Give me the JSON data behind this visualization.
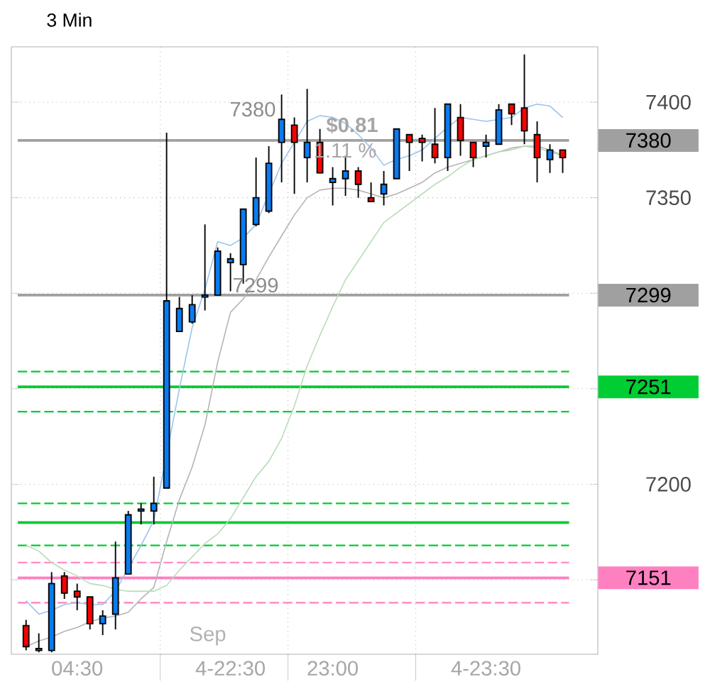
{
  "chart_data": {
    "type": "candlestick",
    "title": "3 Min",
    "categories": [
      null,
      null,
      null,
      null,
      "04:30",
      null,
      null,
      null,
      null,
      null,
      null,
      null,
      null,
      null,
      null,
      null,
      "4-22:30",
      null,
      null,
      null,
      null,
      null,
      null,
      null,
      "23:00",
      null,
      null,
      null,
      null,
      null,
      null,
      null,
      null,
      null,
      null,
      null,
      "4-23:30",
      null,
      null,
      null,
      null,
      null,
      null
    ],
    "ohlc": [
      [
        7126,
        7129,
        7113,
        7115
      ],
      [
        7113,
        7122,
        7112,
        7114
      ],
      [
        7113,
        7154,
        7112,
        7148
      ],
      [
        7152,
        7154,
        7140,
        7143
      ],
      [
        7144,
        7148,
        7134,
        7141
      ],
      [
        7141,
        7141,
        7124,
        7127
      ],
      [
        7127,
        7134,
        7121,
        7131
      ],
      [
        7132,
        7170,
        7124,
        7151
      ],
      [
        7153,
        7186,
        7153,
        7184
      ],
      [
        7186,
        7190,
        7179,
        7187
      ],
      [
        7186,
        7204,
        7179,
        7190
      ],
      [
        7198,
        7384,
        7198,
        7296
      ],
      [
        7280,
        7298,
        7280,
        7292
      ],
      [
        7285,
        7299,
        7284,
        7294
      ],
      [
        7298,
        7336,
        7291,
        7299
      ],
      [
        7299,
        7324,
        7299,
        7322
      ],
      [
        7316,
        7321,
        7301,
        7318
      ],
      [
        7315,
        7344,
        7305,
        7344
      ],
      [
        7336,
        7371,
        7335,
        7350
      ],
      [
        7343,
        7377,
        7342,
        7368
      ],
      [
        7379,
        7404,
        7358,
        7391
      ],
      [
        7388,
        7392,
        7352,
        7379
      ],
      [
        7371,
        7407,
        7358,
        7379
      ],
      [
        7379,
        7386,
        7363,
        7363
      ],
      [
        7358,
        7366,
        7346,
        7360
      ],
      [
        7360,
        7372,
        7351,
        7364
      ],
      [
        7364,
        7366,
        7350,
        7357
      ],
      [
        7350,
        7358,
        7348,
        7348
      ],
      [
        7352,
        7364,
        7346,
        7357
      ],
      [
        7360,
        7386,
        7360,
        7386
      ],
      [
        7383,
        7383,
        7364,
        7379
      ],
      [
        7381,
        7383,
        7369,
        7379
      ],
      [
        7378,
        7397,
        7368,
        7371
      ],
      [
        7371,
        7399,
        7364,
        7399
      ],
      [
        7392,
        7399,
        7372,
        7380
      ],
      [
        7379,
        7379,
        7366,
        7371
      ],
      [
        7377,
        7383,
        7371,
        7379
      ],
      [
        7378,
        7399,
        7378,
        7396
      ],
      [
        7399,
        7399,
        7388,
        7394
      ],
      [
        7397,
        7425,
        7378,
        7385
      ],
      [
        7383,
        7390,
        7358,
        7371
      ],
      [
        7370,
        7378,
        7363,
        7375
      ],
      [
        7375,
        7375,
        7363,
        7371
      ]
    ],
    "colors": [
      "#ff0000",
      "#0a7cf0",
      "#0a7cf0",
      "#ff0000",
      "#ff0000",
      "#ff0000",
      "#0a7cf0",
      "#0a7cf0",
      "#0a7cf0",
      "#0a7cf0",
      "#0a7cf0",
      "#0a7cf0",
      "#0a7cf0",
      "#0a7cf0",
      "#0a7cf0",
      "#0a7cf0",
      "#0a7cf0",
      "#0a7cf0",
      "#0a7cf0",
      "#0a7cf0",
      "#0a7cf0",
      "#ff0000",
      "#0a7cf0",
      "#ff0000",
      "#0a7cf0",
      "#0a7cf0",
      "#ff0000",
      "#ff0000",
      "#0a7cf0",
      "#0a7cf0",
      "#ff0000",
      "#ff0000",
      "#ff0000",
      "#0a7cf0",
      "#ff0000",
      "#ff0000",
      "#0a7cf0",
      "#0a7cf0",
      "#ff0000",
      "#ff0000",
      "#ff0000",
      "#0a7cf0",
      "#ff0000"
    ],
    "series": [
      {
        "type": "line",
        "color": "#9cc3ee",
        "values": [
          7139,
          7132,
          7134,
          7137,
          7138,
          7137,
          7137,
          7144,
          null,
          7168,
          7181,
          null,
          7250,
          7282,
          7302,
          7327,
          7325,
          7329,
          7336,
          null,
          7368,
          7379,
          7390,
          7393,
          7392,
          7389,
          7383,
          7376,
          7367,
          7370,
          7372,
          7375,
          7381,
          7387,
          7392,
          7391,
          7390,
          7391,
          7392,
          7397,
          7399,
          7398,
          7392
        ]
      },
      {
        "type": "line",
        "color": "#b4b4b4",
        "values": [
          7115,
          7118,
          7120,
          7123,
          7125,
          7128,
          7130,
          7131,
          7133,
          7140,
          7146,
          7170,
          7192,
          7209,
          7231,
          7264,
          7290,
          7297,
          7307,
          7319,
          7330,
          7341,
          7350,
          7354,
          7355,
          7355,
          7354,
          7352,
          7350,
          7352,
          7355,
          7358,
          7363,
          7366,
          7368,
          7370,
          7372,
          7374,
          7376,
          7377,
          7377,
          7375,
          7372
        ]
      },
      {
        "type": "line",
        "color": "#b9dcb9",
        "values": [
          7168,
          7165,
          7159,
          7155,
          7152,
          7148,
          7147,
          7145,
          7144,
          7144,
          7144,
          7147,
          7155,
          7162,
          7169,
          7174,
          7182,
          7193,
          7204,
          7212,
          7224,
          7241,
          7262,
          7278,
          7293,
          7307,
          7317,
          7327,
          7337,
          7342,
          7347,
          7352,
          7357,
          7361,
          7366,
          7370,
          7372,
          7374,
          7375,
          7377,
          7376,
          7374,
          7372
        ]
      }
    ],
    "ylim": [
      7111,
      7429
    ],
    "yticks": [
      {
        "value": 7150,
        "label": null
      },
      7200,
      {
        "value": 7250,
        "label": null
      },
      {
        "value": 7300,
        "label": null
      },
      7350,
      7400
    ],
    "grid": true,
    "ref_lines": [
      {
        "axis": "y",
        "value": 7380,
        "label": "7380",
        "color": "#a0a0a0",
        "line_style": "solid"
      },
      {
        "axis": "y",
        "value": 7299,
        "label": "7299",
        "color": "#a0a0a0",
        "line_style": "solid"
      },
      {
        "axis": "y",
        "value": 7251,
        "label": "7251",
        "color": "#00cc33",
        "line_style": "solid"
      },
      {
        "axis": "y",
        "value": 7259,
        "color": "#00cc33",
        "line_style": "dashed"
      },
      {
        "axis": "y",
        "value": 7238,
        "color": "#00cc33",
        "line_style": "dashed"
      },
      {
        "axis": "y",
        "value": 7151,
        "label": "7151",
        "color": "#ff80c0",
        "line_style": "solid"
      },
      {
        "axis": "y",
        "value": 7159,
        "color": "#ff80c0",
        "line_style": "dashed"
      },
      {
        "axis": "y",
        "value": 7138,
        "color": "#ff80c0",
        "line_style": "dashed"
      },
      {
        "axis": "y",
        "value": 7180,
        "color": "#00cc33",
        "line_style": "solid"
      },
      {
        "axis": "y",
        "value": 7190,
        "color": "#00cc33",
        "line_style": "dashed"
      },
      {
        "axis": "y",
        "value": 7168,
        "color": "#00cc33",
        "line_style": "dashed"
      }
    ],
    "annotations": [
      "Sep",
      {
        "text": "$0.81",
        "y": 7388
      },
      "1.11 %",
      "7380",
      "7299"
    ]
  }
}
